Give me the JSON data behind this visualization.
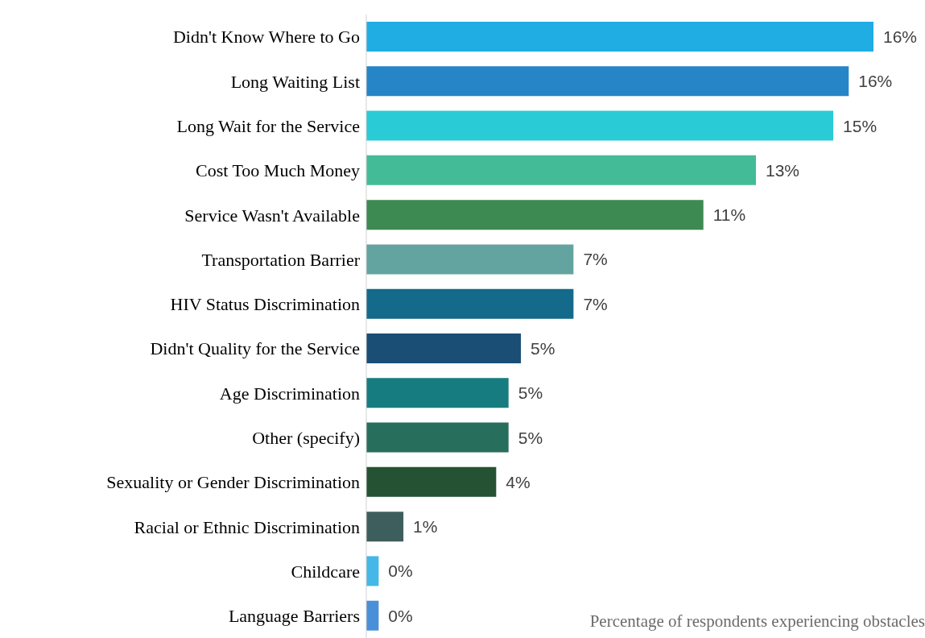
{
  "chart_data": {
    "type": "bar",
    "orientation": "horizontal",
    "categories": [
      "Didn't Know Where to Go",
      "Long Waiting List",
      "Long Wait for the Service",
      "Cost Too Much Money",
      "Service Wasn't Available",
      "Transportation Barrier",
      "HIV Status Discrimination",
      "Didn't Quality for the Service",
      "Age Discrimination",
      "Other (specify)",
      "Sexuality or Gender Discrimination",
      "Racial or Ethnic Discrimination",
      "Childcare",
      "Language Barriers"
    ],
    "values": [
      16.4,
      15.6,
      15.1,
      12.6,
      10.9,
      6.7,
      6.7,
      5.0,
      4.6,
      4.6,
      4.2,
      1.2,
      0.4,
      0.4
    ],
    "value_labels": [
      "16%",
      "16%",
      "15%",
      "13%",
      "11%",
      "7%",
      "7%",
      "5%",
      "5%",
      "5%",
      "4%",
      "1%",
      "0%",
      "0%"
    ],
    "colors": [
      "#1fade4",
      "#2585c7",
      "#29cbd6",
      "#44bb97",
      "#3d8a52",
      "#63a4a0",
      "#136a8a",
      "#1a4e75",
      "#177c80",
      "#276e5c",
      "#245233",
      "#3d5e5c",
      "#45b8e8",
      "#4a90d8"
    ],
    "grid": false,
    "legend": false,
    "annotations": [
      "Percentage of respondents experiencing obstacles"
    ]
  }
}
